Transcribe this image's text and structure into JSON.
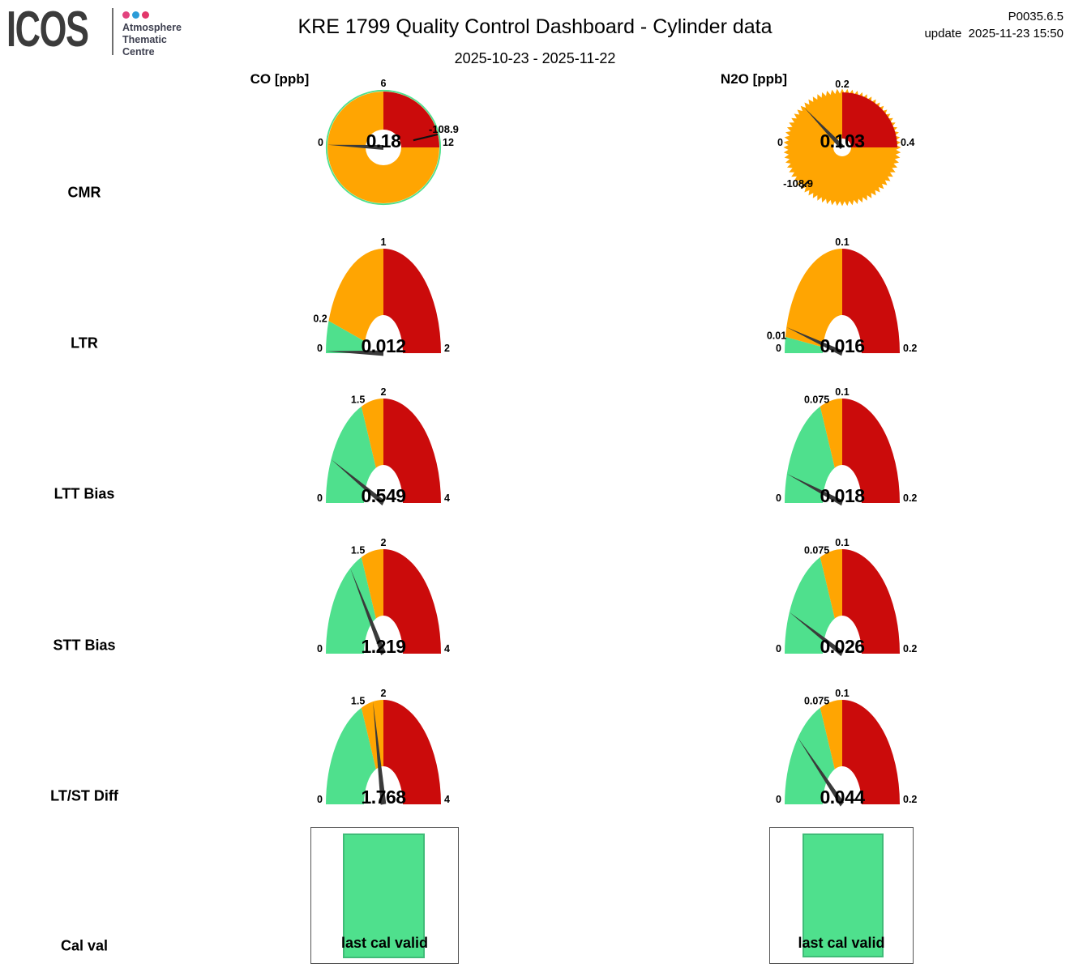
{
  "header": {
    "logo": {
      "text": "ICOS",
      "org_lines": [
        "Atmosphere",
        "Thematic",
        "Centre"
      ],
      "dot_colors": [
        "#e2437e",
        "#2b9cd8",
        "#e2376a"
      ]
    },
    "title": "KRE 1799 Quality Control Dashboard - Cylinder data",
    "subtitle": "2025-10-23 - 2025-11-22",
    "version": "P0035.6.5",
    "update_label": "update",
    "update_time": "2025-11-23 15:50"
  },
  "columns": [
    {
      "label": "CO [ppb]"
    },
    {
      "label": "N2O [ppb]"
    }
  ],
  "rows": [
    "CMR",
    "LTR",
    "LTT Bias",
    "STT Bias",
    "LT/ST Diff",
    "Cal val"
  ],
  "colors": {
    "green": "#4fe08d",
    "orange": "#ffa502",
    "red": "#cb0b0b",
    "needle": "#3a3a3a",
    "marker": "#111111",
    "cal_green_border": "#3fbc78",
    "text": "#000000"
  },
  "chart_data": {
    "type": "gauge-dashboard",
    "gauges": [
      {
        "row": "CMR",
        "gas": "CO",
        "shape": "full_circle",
        "value": 0.18,
        "value_label": "0.18",
        "full_turn": 24,
        "tick_labels": {
          "left": "0",
          "top": "6",
          "right": "12"
        },
        "red_zone": [
          6,
          12
        ],
        "marker": {
          "value": -108.9,
          "label": "-108.9"
        },
        "spiky_edge": false
      },
      {
        "row": "CMR",
        "gas": "N2O",
        "shape": "full_circle",
        "value": 0.103,
        "value_label": "0.103",
        "full_turn": 0.8,
        "tick_labels": {
          "left": "0",
          "top": "0.2",
          "right": "0.4"
        },
        "red_zone": [
          0.2,
          0.4
        ],
        "marker": {
          "value": -108.9,
          "label": "-108.9"
        },
        "spiky_edge": true
      },
      {
        "row": "LTR",
        "gas": "CO",
        "shape": "half_arch",
        "value": 0.012,
        "value_label": "0.012",
        "max": 2,
        "zones": [
          {
            "color": "green",
            "from": 0,
            "to": 0.2
          },
          {
            "color": "orange",
            "from": 0.2,
            "to": 1
          },
          {
            "color": "red",
            "from": 1,
            "to": 2
          }
        ],
        "ticks": [
          {
            "value": 0,
            "label": "0"
          },
          {
            "value": 0.2,
            "label": "0.2"
          },
          {
            "value": 1,
            "label": "1"
          },
          {
            "value": 2,
            "label": "2"
          }
        ]
      },
      {
        "row": "LTR",
        "gas": "N2O",
        "shape": "half_arch",
        "value": 0.016,
        "value_label": "0.016",
        "max": 0.2,
        "zones": [
          {
            "color": "green",
            "from": 0,
            "to": 0.01
          },
          {
            "color": "orange",
            "from": 0.01,
            "to": 0.1
          },
          {
            "color": "red",
            "from": 0.1,
            "to": 0.2
          }
        ],
        "ticks": [
          {
            "value": 0,
            "label": "0"
          },
          {
            "value": 0.01,
            "label": "0.01"
          },
          {
            "value": 0.1,
            "label": "0.1"
          },
          {
            "value": 0.2,
            "label": "0.2"
          }
        ]
      },
      {
        "row": "LTT Bias",
        "gas": "CO",
        "shape": "half_arch",
        "value": 0.549,
        "value_label": "0.549",
        "max": 4,
        "zones": [
          {
            "color": "green",
            "from": 0,
            "to": 1.5
          },
          {
            "color": "orange",
            "from": 1.5,
            "to": 2
          },
          {
            "color": "red",
            "from": 2,
            "to": 4
          }
        ],
        "ticks": [
          {
            "value": 0,
            "label": "0"
          },
          {
            "value": 1.5,
            "label": "1.5"
          },
          {
            "value": 2,
            "label": "2"
          },
          {
            "value": 4,
            "label": "4"
          }
        ]
      },
      {
        "row": "LTT Bias",
        "gas": "N2O",
        "shape": "half_arch",
        "value": 0.018,
        "value_label": "0.018",
        "max": 0.2,
        "zones": [
          {
            "color": "green",
            "from": 0,
            "to": 0.075
          },
          {
            "color": "orange",
            "from": 0.075,
            "to": 0.1
          },
          {
            "color": "red",
            "from": 0.1,
            "to": 0.2
          }
        ],
        "ticks": [
          {
            "value": 0,
            "label": "0"
          },
          {
            "value": 0.075,
            "label": "0.075"
          },
          {
            "value": 0.1,
            "label": "0.1"
          },
          {
            "value": 0.2,
            "label": "0.2"
          }
        ]
      },
      {
        "row": "STT Bias",
        "gas": "CO",
        "shape": "half_arch",
        "value": 1.219,
        "value_label": "1.219",
        "max": 4,
        "zones": [
          {
            "color": "green",
            "from": 0,
            "to": 1.5
          },
          {
            "color": "orange",
            "from": 1.5,
            "to": 2
          },
          {
            "color": "red",
            "from": 2,
            "to": 4
          }
        ],
        "ticks": [
          {
            "value": 0,
            "label": "0"
          },
          {
            "value": 1.5,
            "label": "1.5"
          },
          {
            "value": 2,
            "label": "2"
          },
          {
            "value": 4,
            "label": "4"
          }
        ]
      },
      {
        "row": "STT Bias",
        "gas": "N2O",
        "shape": "half_arch",
        "value": 0.026,
        "value_label": "0.026",
        "max": 0.2,
        "zones": [
          {
            "color": "green",
            "from": 0,
            "to": 0.075
          },
          {
            "color": "orange",
            "from": 0.075,
            "to": 0.1
          },
          {
            "color": "red",
            "from": 0.1,
            "to": 0.2
          }
        ],
        "ticks": [
          {
            "value": 0,
            "label": "0"
          },
          {
            "value": 0.075,
            "label": "0.075"
          },
          {
            "value": 0.1,
            "label": "0.1"
          },
          {
            "value": 0.2,
            "label": "0.2"
          }
        ]
      },
      {
        "row": "LT/ST Diff",
        "gas": "CO",
        "shape": "half_arch",
        "value": 1.768,
        "value_label": "1.768",
        "max": 4,
        "zones": [
          {
            "color": "green",
            "from": 0,
            "to": 1.5
          },
          {
            "color": "orange",
            "from": 1.5,
            "to": 2
          },
          {
            "color": "red",
            "from": 2,
            "to": 4
          }
        ],
        "ticks": [
          {
            "value": 0,
            "label": "0"
          },
          {
            "value": 1.5,
            "label": "1.5"
          },
          {
            "value": 2,
            "label": "2"
          },
          {
            "value": 4,
            "label": "4"
          }
        ]
      },
      {
        "row": "LT/ST Diff",
        "gas": "N2O",
        "shape": "half_arch",
        "value": 0.044,
        "value_label": "0.044",
        "max": 0.2,
        "zones": [
          {
            "color": "green",
            "from": 0,
            "to": 0.075
          },
          {
            "color": "orange",
            "from": 0.075,
            "to": 0.1
          },
          {
            "color": "red",
            "from": 0.1,
            "to": 0.2
          }
        ],
        "ticks": [
          {
            "value": 0,
            "label": "0"
          },
          {
            "value": 0.075,
            "label": "0.075"
          },
          {
            "value": 0.1,
            "label": "0.1"
          },
          {
            "value": 0.2,
            "label": "0.2"
          }
        ]
      }
    ],
    "cal": {
      "label": "last cal valid"
    }
  }
}
